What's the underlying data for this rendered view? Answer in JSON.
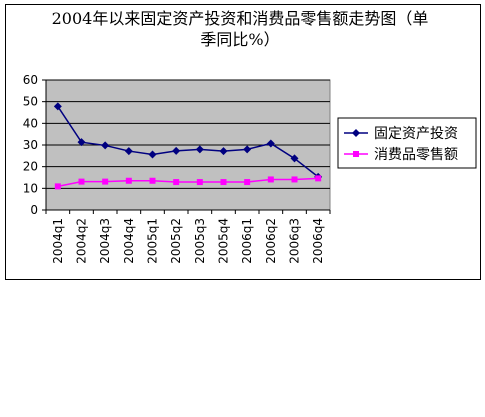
{
  "chart_data": {
    "type": "line",
    "title": "2004年以来固定资产投资和消费品零售额走势图（单季同比%）",
    "title_lines": [
      "2004年以来固定资产投资和消费品零售额走势图（单",
      "季同比%）"
    ],
    "xlabel": "",
    "ylabel": "",
    "ylim": [
      0,
      60
    ],
    "yticks": [
      0,
      10,
      20,
      30,
      40,
      50,
      60
    ],
    "grid": true,
    "legend_position": "right",
    "categories": [
      "2004q1",
      "2004q2",
      "2004q3",
      "2004q4",
      "2005q1",
      "2005q2",
      "2005q3",
      "2005q4",
      "2006q1",
      "2006q2",
      "2006q3",
      "2006q4"
    ],
    "series": [
      {
        "name": "固定资产投资",
        "color": "#000080",
        "marker": "diamond",
        "values": [
          47.8,
          31.3,
          29.8,
          27.2,
          25.6,
          27.3,
          28.0,
          27.2,
          28.0,
          30.7,
          23.8,
          15.3
        ]
      },
      {
        "name": "消费品零售额",
        "color": "#ff00ff",
        "marker": "square",
        "values": [
          10.9,
          13.1,
          13.1,
          13.5,
          13.5,
          12.9,
          12.9,
          12.9,
          12.9,
          14.1,
          14.1,
          14.6
        ]
      }
    ],
    "plot_background": "#c0c0c0"
  }
}
